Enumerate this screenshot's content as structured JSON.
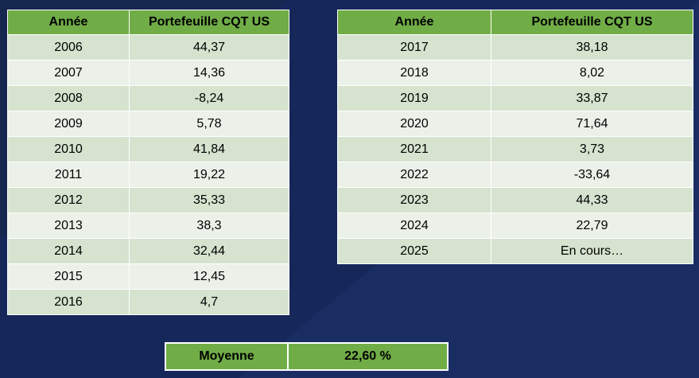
{
  "colors": {
    "background": "#16285a",
    "header": "#70ad47",
    "row_odd": "#d5e3cf",
    "row_even": "#ebf1e9"
  },
  "left_table": {
    "headers": [
      "Année",
      "Portefeuille CQT US"
    ],
    "rows": [
      [
        "2006",
        "44,37"
      ],
      [
        "2007",
        "14,36"
      ],
      [
        "2008",
        "-8,24"
      ],
      [
        "2009",
        "5,78"
      ],
      [
        "2010",
        "41,84"
      ],
      [
        "2011",
        "19,22"
      ],
      [
        "2012",
        "35,33"
      ],
      [
        "2013",
        "38,3"
      ],
      [
        "2014",
        "32,44"
      ],
      [
        "2015",
        "12,45"
      ],
      [
        "2016",
        "4,7"
      ]
    ]
  },
  "right_table": {
    "headers": [
      "Année",
      "Portefeuille CQT US"
    ],
    "rows": [
      [
        "2017",
        "38,18"
      ],
      [
        "2018",
        "8,02"
      ],
      [
        "2019",
        "33,87"
      ],
      [
        "2020",
        "71,64"
      ],
      [
        "2021",
        "3,73"
      ],
      [
        "2022",
        "-33,64"
      ],
      [
        "2023",
        "44,33"
      ],
      [
        "2024",
        "22,79"
      ],
      [
        "2025",
        "En cours…"
      ]
    ]
  },
  "summary": {
    "label": "Moyenne",
    "value": "22,60 %"
  }
}
